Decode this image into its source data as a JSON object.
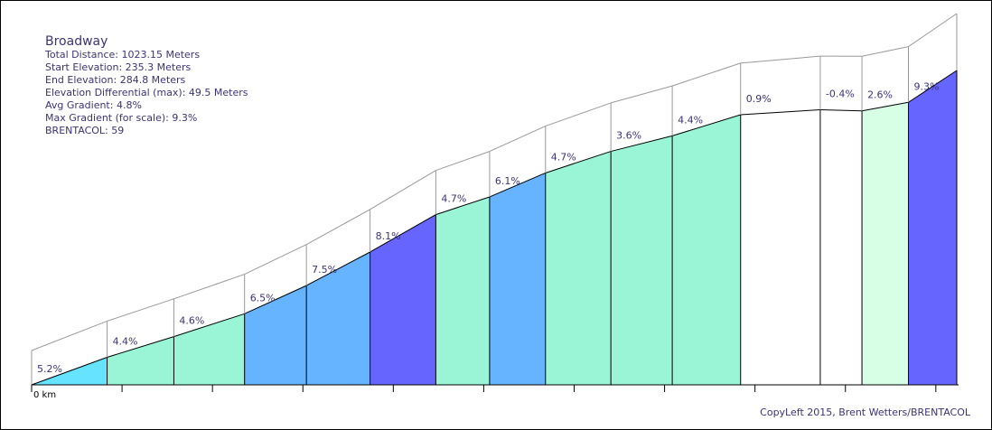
{
  "chart_data": {
    "type": "area",
    "title": "Broadway",
    "stats": [
      "Total Distance: 1023.15 Meters",
      "Start Elevation: 235.3 Meters",
      "End Elevation: 284.8 Meters",
      "Elevation Differential (max): 49.5 Meters",
      "Avg Gradient: 4.8%",
      "Max Gradient (for scale): 9.3%",
      "BRENTACOL: 59"
    ],
    "x_unit": "m",
    "x_axis_label": "0 km",
    "xlim": [
      0,
      1023.15
    ],
    "ylim": [
      235.3,
      284.8
    ],
    "segments": [
      {
        "start": 0,
        "end": 83.5,
        "grade_label": "5.2%",
        "grade": 5.2,
        "color": "#66e3ff"
      },
      {
        "start": 83.5,
        "end": 157.3,
        "grade_label": "4.4%",
        "grade": 4.4,
        "color": "#99f5d6"
      },
      {
        "start": 157.3,
        "end": 235.5,
        "grade_label": "4.6%",
        "grade": 4.6,
        "color": "#99f5d6"
      },
      {
        "start": 235.5,
        "end": 303.9,
        "grade_label": "6.5%",
        "grade": 6.5,
        "color": "#66b3ff"
      },
      {
        "start": 303.9,
        "end": 374.3,
        "grade_label": "7.5%",
        "grade": 7.5,
        "color": "#66b3ff"
      },
      {
        "start": 374.3,
        "end": 447.0,
        "grade_label": "8.1%",
        "grade": 8.1,
        "color": "#6666ff"
      },
      {
        "start": 447.0,
        "end": 506.5,
        "grade_label": "4.7%",
        "grade": 4.7,
        "color": "#99f5d6"
      },
      {
        "start": 506.5,
        "end": 568.3,
        "grade_label": "6.1%",
        "grade": 6.1,
        "color": "#66b3ff"
      },
      {
        "start": 568.3,
        "end": 640.6,
        "grade_label": "4.7%",
        "grade": 4.7,
        "color": "#99f5d6"
      },
      {
        "start": 640.6,
        "end": 708.5,
        "grade_label": "3.6%",
        "grade": 3.6,
        "color": "#99f5d6"
      },
      {
        "start": 708.5,
        "end": 784.1,
        "grade_label": "4.4%",
        "grade": 4.4,
        "color": "#99f5d6"
      },
      {
        "start": 784.1,
        "end": 872.2,
        "grade_label": "0.9%",
        "grade": 0.9,
        "color": "#ffffff"
      },
      {
        "start": 872.2,
        "end": 918.3,
        "grade_label": "-0.4%",
        "grade": -0.4,
        "color": "#ffffff"
      },
      {
        "start": 918.3,
        "end": 969.7,
        "grade_label": "2.6%",
        "grade": 2.6,
        "color": "#d6ffe6"
      },
      {
        "start": 969.7,
        "end": 1023.15,
        "grade_label": "9.3%",
        "grade": 9.3,
        "color": "#6666ff"
      }
    ],
    "elevations": [
      235.3,
      239.64,
      242.89,
      246.49,
      250.93,
      256.21,
      262.1,
      264.89,
      268.66,
      272.06,
      274.5,
      277.83,
      278.62,
      278.44,
      279.78,
      284.8
    ],
    "x_ticks": [
      0,
      100,
      200,
      300,
      400,
      500,
      600,
      700,
      800,
      900,
      1000
    ],
    "copyright": "CopyLeft 2015, Brent Wetters/BRENTACOL"
  }
}
